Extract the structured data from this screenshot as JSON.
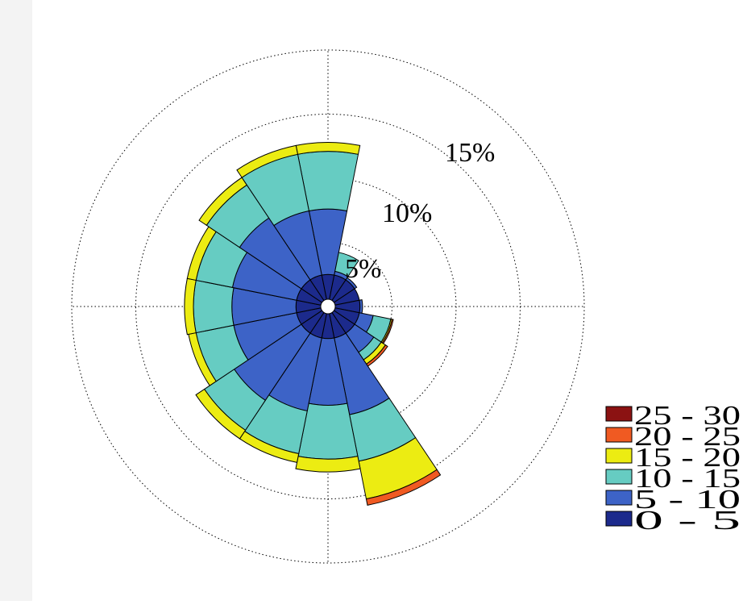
{
  "chart_data": {
    "type": "wind-rose",
    "title": "",
    "ring_labels": [
      "5%",
      "10%",
      "15%"
    ],
    "ring_values": [
      5,
      10,
      15,
      20
    ],
    "rmax": 20,
    "grid": true,
    "grid_style": "dotted",
    "legend_position": "right",
    "sector_width_deg": 22.5,
    "directions_deg": [
      0,
      22.5,
      45,
      67.5,
      90,
      112.5,
      135,
      157.5,
      180,
      202.5,
      225,
      247.5,
      270,
      292.5,
      315,
      337.5
    ],
    "bins": [
      {
        "label": "0 - 5",
        "color": "#1c2a8c"
      },
      {
        "label": "5 - 10",
        "color": "#3d63c7"
      },
      {
        "label": "10 - 15",
        "color": "#66ccc2"
      },
      {
        "label": "15 - 20",
        "color": "#ecec12"
      },
      {
        "label": "20 - 25",
        "color": "#f05a22"
      },
      {
        "label": "25 - 30",
        "color": "#8b1212"
      }
    ],
    "cumulative_percent": [
      [
        2.5,
        7.6,
        12.1,
        12.8,
        12.8,
        12.8
      ],
      [
        2.5,
        2.8,
        4.3,
        4.3,
        4.3,
        4.3
      ],
      [
        2.5,
        2.7,
        2.7,
        2.7,
        2.7,
        2.7
      ],
      [
        2.5,
        2.5,
        2.5,
        2.5,
        2.5,
        2.5
      ],
      [
        2.5,
        2.7,
        2.7,
        2.7,
        2.7,
        2.7
      ],
      [
        2.5,
        3.6,
        5.0,
        5.1,
        5.2,
        5.2
      ],
      [
        2.5,
        4.3,
        5.0,
        5.4,
        5.6,
        5.6
      ],
      [
        2.5,
        8.6,
        12.3,
        15.3,
        15.8,
        15.8
      ],
      [
        2.5,
        7.7,
        11.9,
        12.9,
        12.9,
        12.9
      ],
      [
        2.5,
        8.3,
        11.7,
        12.4,
        12.4,
        12.4
      ],
      [
        2.5,
        8.8,
        11.6,
        12.4,
        12.4,
        12.4
      ],
      [
        2.5,
        7.5,
        10.5,
        11.1,
        11.1,
        11.1
      ],
      [
        2.5,
        7.5,
        10.5,
        11.2,
        11.2,
        11.2
      ],
      [
        2.5,
        7.6,
        10.5,
        11.2,
        11.2,
        11.2
      ],
      [
        2.5,
        8.3,
        11.4,
        12.1,
        12.1,
        12.1
      ],
      [
        2.5,
        7.6,
        12.1,
        12.8,
        12.8,
        12.8
      ]
    ]
  }
}
